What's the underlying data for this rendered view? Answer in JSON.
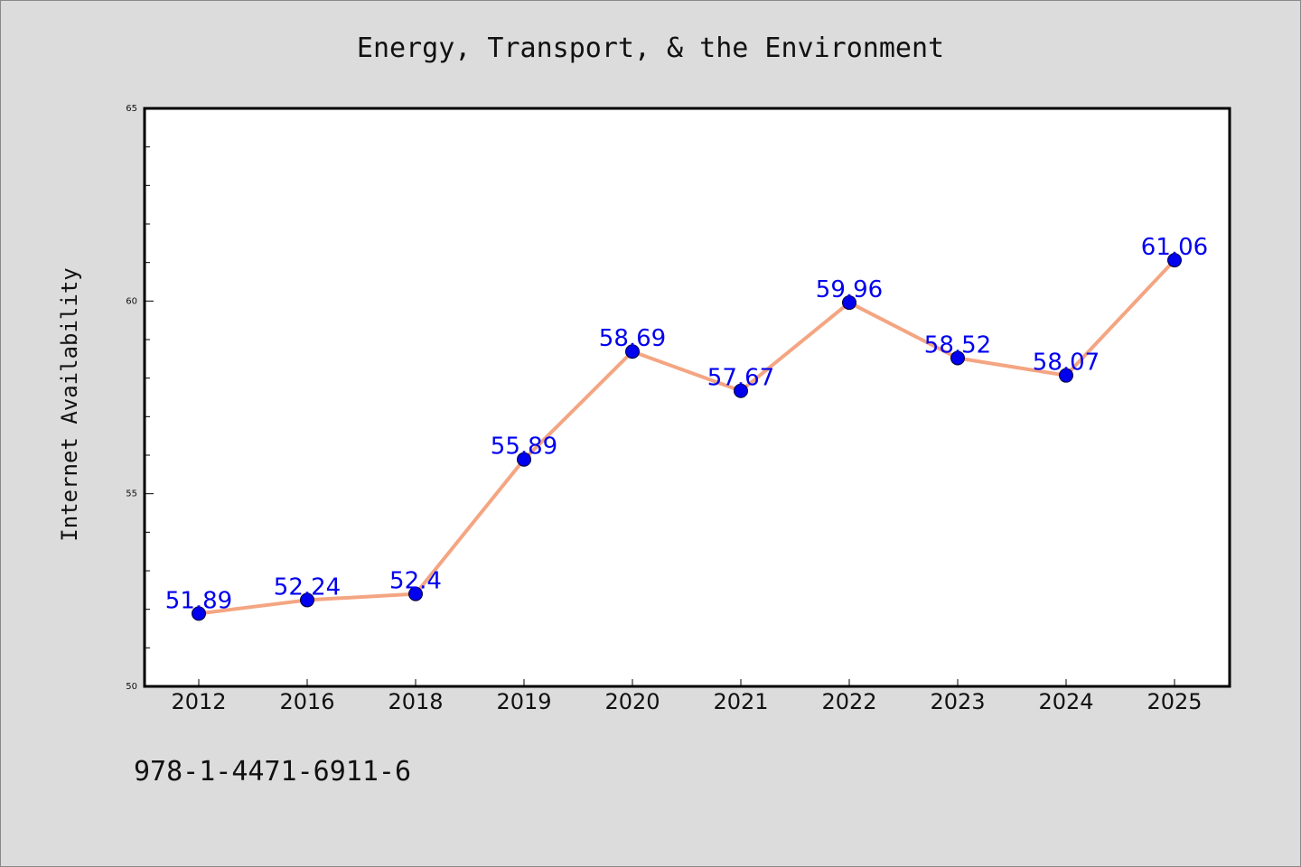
{
  "chart_data": {
    "type": "line",
    "title": "Energy, Transport, & the Environment",
    "ylabel": "Internet Availability",
    "xlabel": "",
    "categories": [
      "2012",
      "2016",
      "2018",
      "2019",
      "2020",
      "2021",
      "2022",
      "2023",
      "2024",
      "2025"
    ],
    "series": [
      {
        "values": [
          51.89,
          52.24,
          52.4,
          55.89,
          58.69,
          57.67,
          59.96,
          58.52,
          58.07,
          61.06
        ],
        "labels": [
          "51.89",
          "52.24",
          "52.4",
          "55.89",
          "58.69",
          "57.67",
          "59.96",
          "58.52",
          "58.07",
          "61.06"
        ]
      }
    ],
    "ylim": [
      50,
      65
    ],
    "yticks": [
      "50",
      "55",
      "60",
      "65"
    ],
    "grid": false,
    "legend": "none",
    "line_color": "#f4a582",
    "marker_color": "#0000ee",
    "label_color": "#0000ee"
  },
  "footer": {
    "isbn": "978-1-4471-6911-6"
  }
}
